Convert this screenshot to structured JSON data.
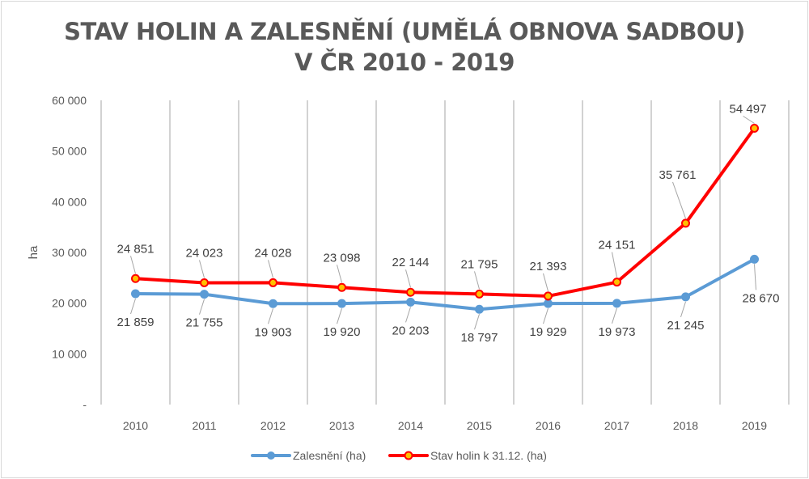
{
  "chart_data": {
    "type": "line",
    "title_line1": "STAV HOLIN A ZALESNĚNÍ (UMĚLÁ OBNOVA SADBOU)",
    "title_line2": "V ČR 2010 - 2019",
    "xlabel": "",
    "ylabel": "ha",
    "ylim": [
      0,
      60000
    ],
    "yticks": [
      "-",
      "10 000",
      "20 000",
      "30 000",
      "40 000",
      "50 000",
      "60 000"
    ],
    "categories": [
      "2010",
      "2011",
      "2012",
      "2013",
      "2014",
      "2015",
      "2016",
      "2017",
      "2018",
      "2019"
    ],
    "grid": "vertical",
    "legend_position": "bottom",
    "series": [
      {
        "name": "Zalesnění (ha)",
        "color": "#5b9bd5",
        "values": [
          21859,
          21755,
          19903,
          19920,
          20203,
          18797,
          19929,
          19973,
          21245,
          28670
        ],
        "labels": [
          "21 859",
          "21 755",
          "19 903",
          "19 920",
          "20 203",
          "18 797",
          "19 929",
          "19 973",
          "21 245",
          "28 670"
        ]
      },
      {
        "name": "Stav holin k 31.12. (ha)",
        "color": "#ff0000",
        "marker_color": "#ffc000",
        "values": [
          24851,
          24023,
          24028,
          23098,
          22144,
          21795,
          21393,
          24151,
          35761,
          54497
        ],
        "labels": [
          "24 851",
          "24 023",
          "24 028",
          "23 098",
          "22 144",
          "21 795",
          "21 393",
          "24 151",
          "35 761",
          "54 497"
        ]
      }
    ]
  }
}
